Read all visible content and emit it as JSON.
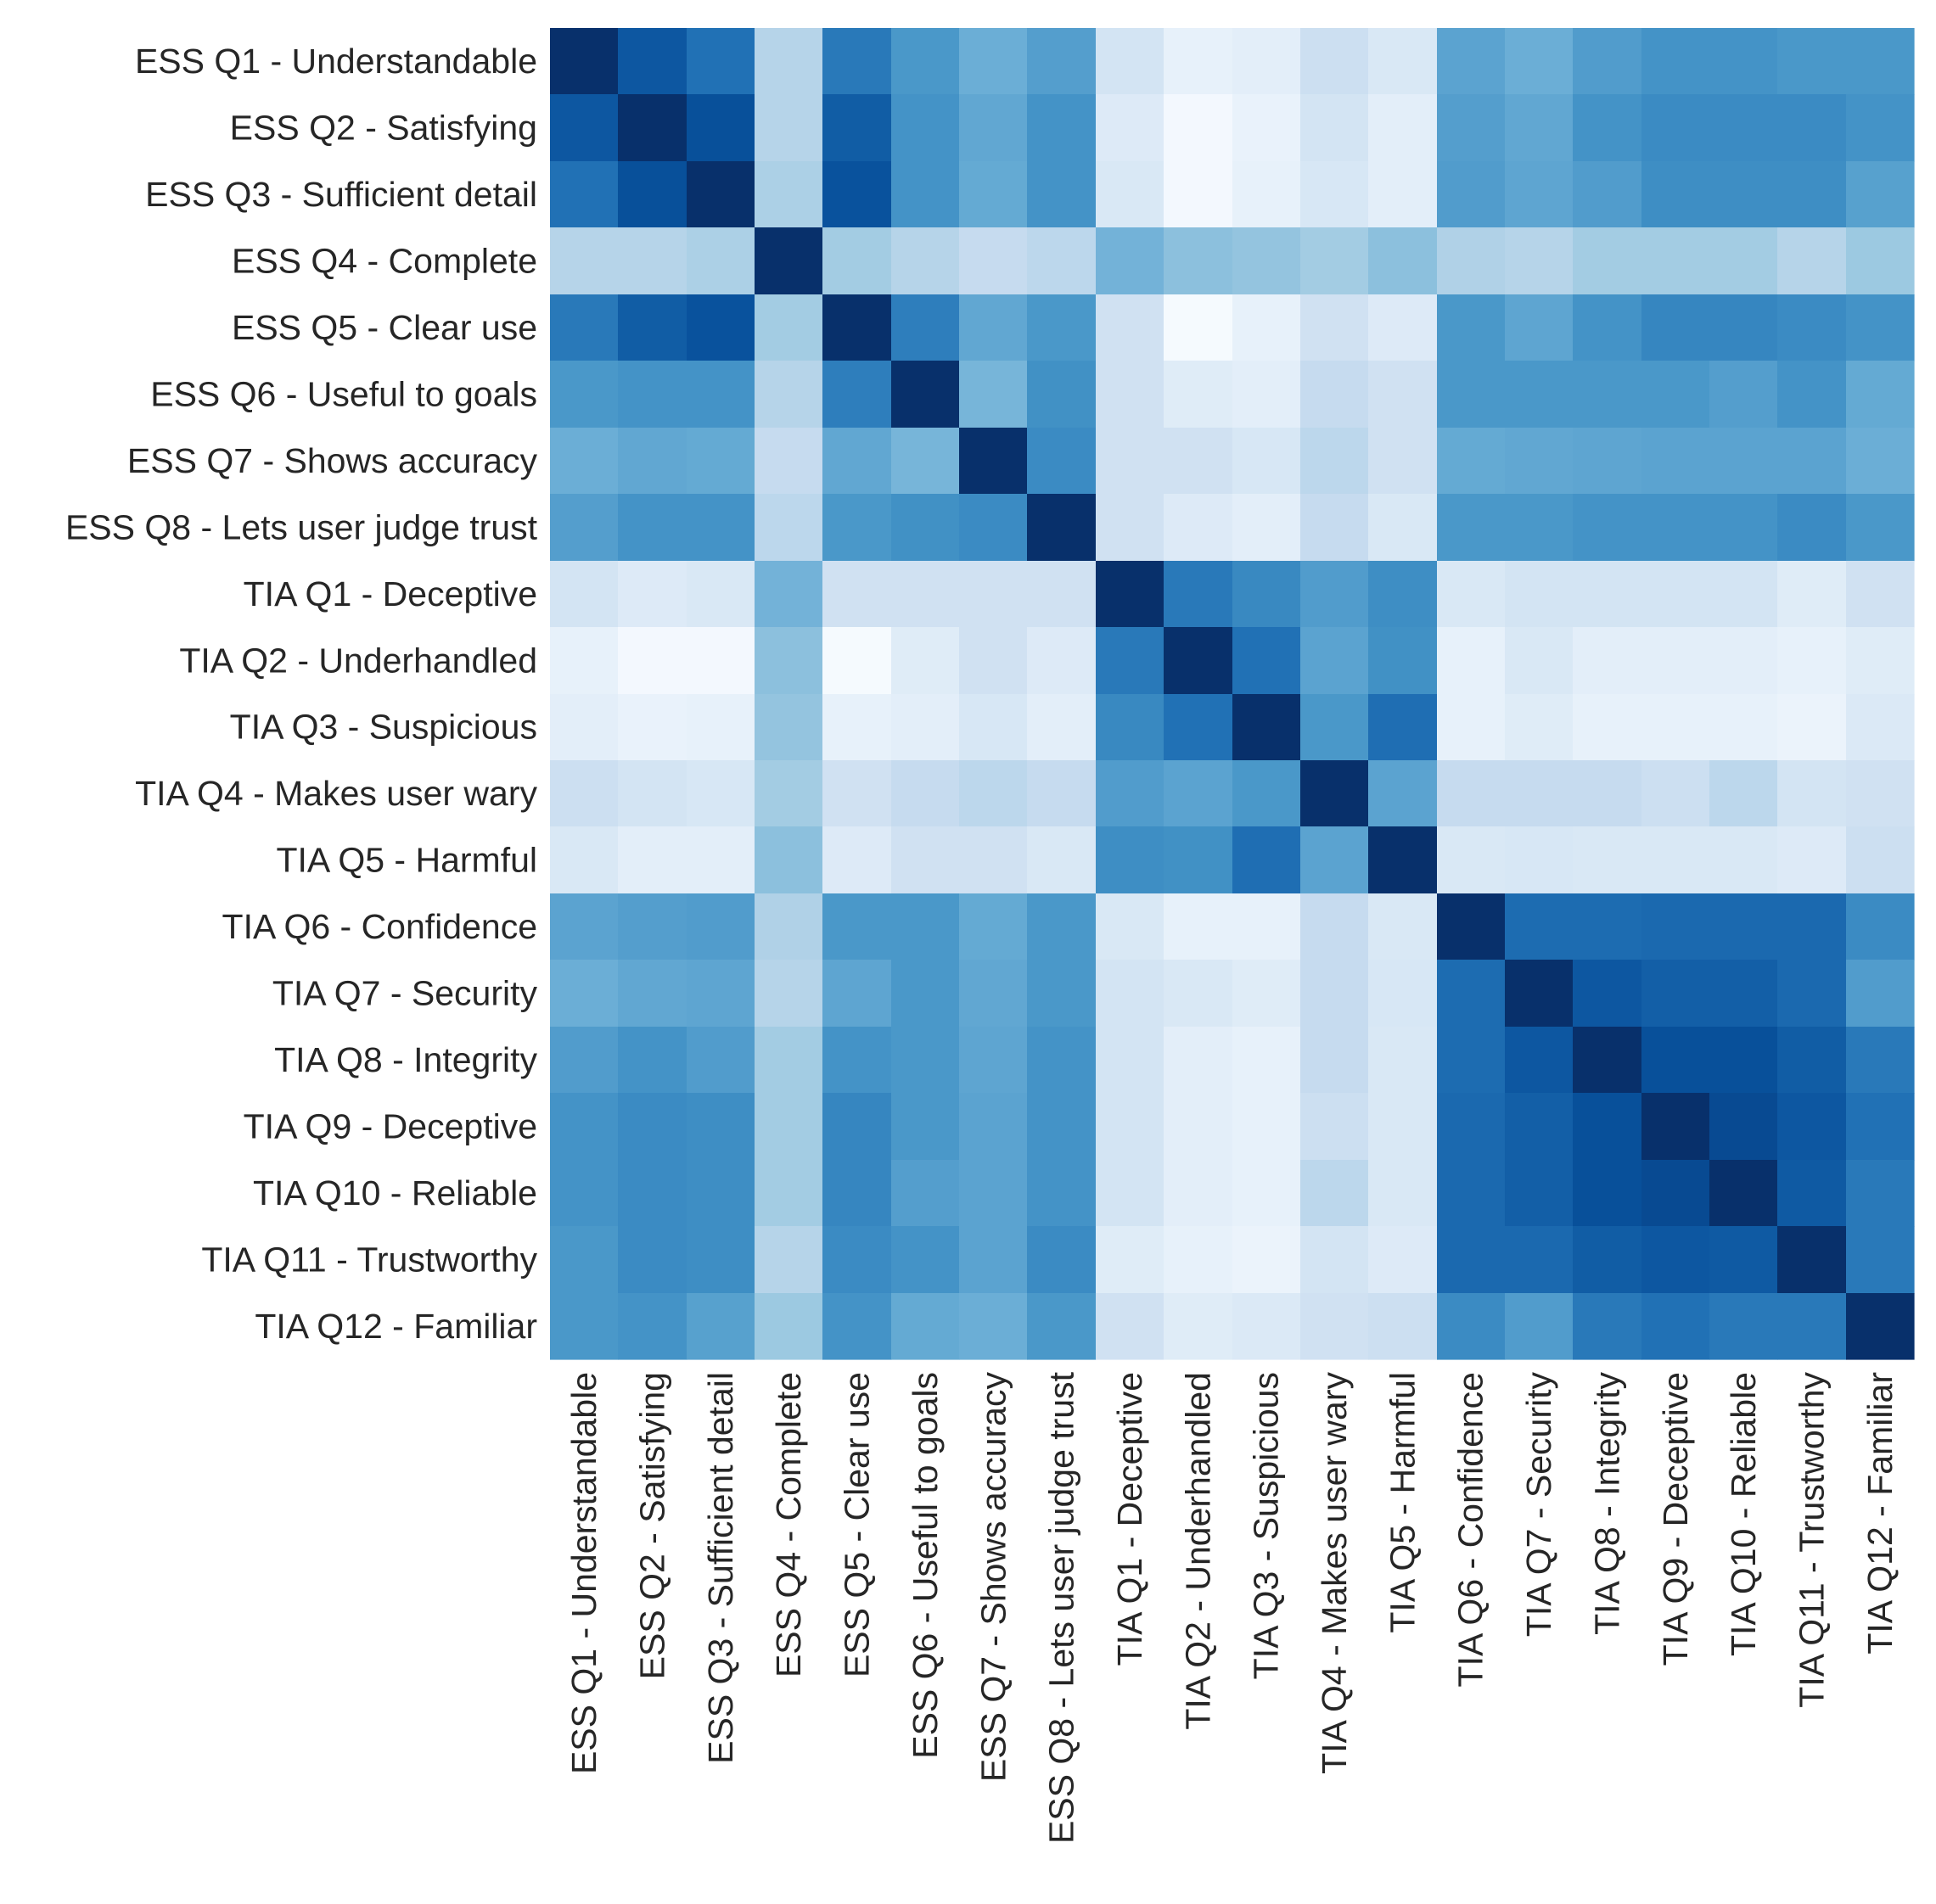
{
  "chart_data": {
    "type": "heatmap",
    "title": "",
    "xlabel": "",
    "ylabel": "",
    "colormap": "Blues",
    "colormap_stops": [
      "#f7fbff",
      "#deebf7",
      "#c6dbef",
      "#9ecae1",
      "#6baed6",
      "#4292c6",
      "#2171b5",
      "#08519c",
      "#08306b"
    ],
    "value_range": [
      0,
      1
    ],
    "colorbar": false,
    "labels": [
      "ESS Q1 - Understandable",
      "ESS Q2 - Satisfying",
      "ESS Q3 - Sufficient detail",
      "ESS Q4 - Complete",
      "ESS Q5 - Clear use",
      "ESS Q6 - Useful to goals",
      "ESS Q7 - Shows accuracy",
      "ESS Q8 - Lets user judge trust",
      "TIA Q1 - Deceptive",
      "TIA Q2 - Underhandled",
      "TIA Q3 - Suspicious",
      "TIA Q4 - Makes user wary",
      "TIA Q5 - Harmful",
      "TIA Q6 - Confidence",
      "TIA Q7 - Security",
      "TIA Q8 - Integrity",
      "TIA Q9 - Deceptive",
      "TIA Q10 - Reliable",
      "TIA Q11 - Trustworthy",
      "TIA Q12 - Familiar"
    ],
    "values": [
      [
        1.0,
        0.85,
        0.75,
        0.3,
        0.72,
        0.6,
        0.5,
        0.57,
        0.18,
        0.08,
        0.1,
        0.22,
        0.15,
        0.55,
        0.5,
        0.58,
        0.62,
        0.62,
        0.6,
        0.6
      ],
      [
        0.85,
        1.0,
        0.88,
        0.3,
        0.83,
        0.62,
        0.53,
        0.62,
        0.13,
        0.02,
        0.07,
        0.18,
        0.1,
        0.57,
        0.53,
        0.62,
        0.65,
        0.65,
        0.65,
        0.62
      ],
      [
        0.75,
        0.88,
        1.0,
        0.33,
        0.87,
        0.62,
        0.52,
        0.62,
        0.15,
        0.02,
        0.08,
        0.16,
        0.1,
        0.58,
        0.54,
        0.58,
        0.64,
        0.64,
        0.64,
        0.56
      ],
      [
        0.3,
        0.3,
        0.33,
        1.0,
        0.36,
        0.3,
        0.25,
        0.28,
        0.48,
        0.42,
        0.4,
        0.36,
        0.42,
        0.32,
        0.3,
        0.36,
        0.36,
        0.36,
        0.3,
        0.38
      ],
      [
        0.72,
        0.83,
        0.87,
        0.36,
        1.0,
        0.7,
        0.53,
        0.6,
        0.2,
        0.01,
        0.08,
        0.2,
        0.13,
        0.6,
        0.54,
        0.62,
        0.67,
        0.67,
        0.65,
        0.62
      ],
      [
        0.6,
        0.62,
        0.62,
        0.3,
        0.7,
        1.0,
        0.47,
        0.63,
        0.2,
        0.12,
        0.1,
        0.25,
        0.2,
        0.6,
        0.6,
        0.6,
        0.6,
        0.57,
        0.62,
        0.52
      ],
      [
        0.5,
        0.53,
        0.52,
        0.25,
        0.53,
        0.47,
        1.0,
        0.65,
        0.2,
        0.2,
        0.16,
        0.28,
        0.2,
        0.52,
        0.53,
        0.54,
        0.55,
        0.55,
        0.55,
        0.5
      ],
      [
        0.57,
        0.62,
        0.62,
        0.28,
        0.6,
        0.63,
        0.65,
        1.0,
        0.2,
        0.13,
        0.1,
        0.25,
        0.15,
        0.6,
        0.6,
        0.62,
        0.62,
        0.62,
        0.65,
        0.6
      ],
      [
        0.18,
        0.13,
        0.15,
        0.48,
        0.2,
        0.2,
        0.2,
        0.2,
        1.0,
        0.72,
        0.66,
        0.58,
        0.64,
        0.15,
        0.18,
        0.18,
        0.18,
        0.18,
        0.12,
        0.2
      ],
      [
        0.08,
        0.02,
        0.02,
        0.42,
        0.01,
        0.12,
        0.2,
        0.13,
        0.72,
        1.0,
        0.75,
        0.55,
        0.63,
        0.08,
        0.15,
        0.1,
        0.1,
        0.1,
        0.08,
        0.12
      ],
      [
        0.1,
        0.07,
        0.08,
        0.4,
        0.08,
        0.1,
        0.16,
        0.1,
        0.66,
        0.75,
        1.0,
        0.6,
        0.76,
        0.08,
        0.12,
        0.08,
        0.08,
        0.08,
        0.06,
        0.14
      ],
      [
        0.22,
        0.18,
        0.16,
        0.36,
        0.2,
        0.25,
        0.28,
        0.25,
        0.58,
        0.55,
        0.6,
        1.0,
        0.55,
        0.25,
        0.25,
        0.25,
        0.22,
        0.28,
        0.18,
        0.2
      ],
      [
        0.15,
        0.1,
        0.1,
        0.42,
        0.13,
        0.2,
        0.2,
        0.15,
        0.64,
        0.63,
        0.76,
        0.55,
        1.0,
        0.15,
        0.16,
        0.15,
        0.15,
        0.15,
        0.13,
        0.22
      ],
      [
        0.55,
        0.57,
        0.58,
        0.32,
        0.6,
        0.6,
        0.52,
        0.6,
        0.15,
        0.08,
        0.08,
        0.25,
        0.15,
        1.0,
        0.77,
        0.77,
        0.78,
        0.78,
        0.78,
        0.65
      ],
      [
        0.5,
        0.53,
        0.54,
        0.3,
        0.54,
        0.6,
        0.53,
        0.6,
        0.18,
        0.15,
        0.12,
        0.25,
        0.16,
        0.77,
        1.0,
        0.85,
        0.82,
        0.82,
        0.78,
        0.58
      ],
      [
        0.58,
        0.62,
        0.58,
        0.36,
        0.62,
        0.6,
        0.54,
        0.62,
        0.18,
        0.1,
        0.08,
        0.25,
        0.15,
        0.77,
        0.85,
        1.0,
        0.88,
        0.88,
        0.83,
        0.72
      ],
      [
        0.62,
        0.65,
        0.64,
        0.36,
        0.67,
        0.6,
        0.55,
        0.62,
        0.18,
        0.1,
        0.08,
        0.22,
        0.15,
        0.78,
        0.82,
        0.88,
        1.0,
        0.9,
        0.85,
        0.75
      ],
      [
        0.62,
        0.65,
        0.64,
        0.36,
        0.67,
        0.57,
        0.55,
        0.62,
        0.18,
        0.1,
        0.08,
        0.28,
        0.15,
        0.78,
        0.82,
        0.88,
        0.9,
        1.0,
        0.84,
        0.72
      ],
      [
        0.6,
        0.65,
        0.64,
        0.3,
        0.65,
        0.62,
        0.55,
        0.65,
        0.12,
        0.08,
        0.06,
        0.18,
        0.13,
        0.78,
        0.78,
        0.83,
        0.85,
        0.84,
        1.0,
        0.72
      ],
      [
        0.6,
        0.62,
        0.56,
        0.38,
        0.62,
        0.52,
        0.5,
        0.6,
        0.2,
        0.12,
        0.14,
        0.2,
        0.22,
        0.65,
        0.58,
        0.72,
        0.75,
        0.72,
        0.72,
        1.0
      ]
    ]
  }
}
